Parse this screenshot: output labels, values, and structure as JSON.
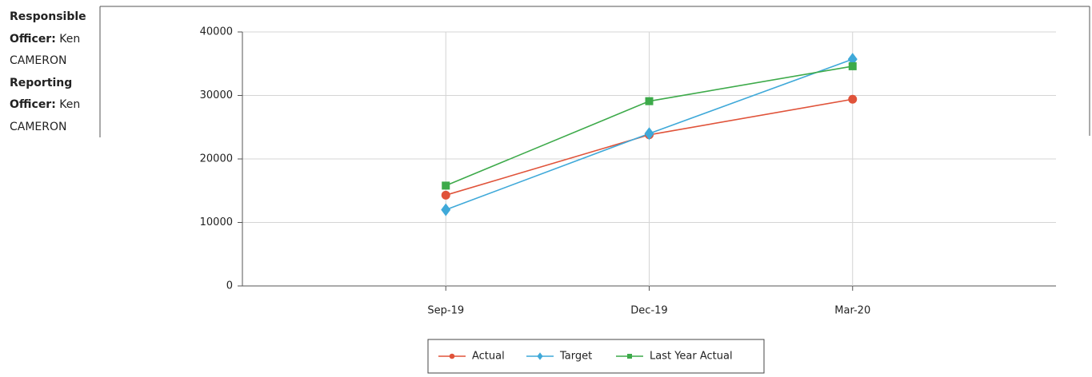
{
  "officers": [
    {
      "label": "Responsible Officer:",
      "name": "Ken CAMERON"
    },
    {
      "label": "Reporting Officer:",
      "name": "Ken CAMERON"
    }
  ],
  "chart_data": {
    "type": "line",
    "categories": [
      "Sep-19",
      "Dec-19",
      "Mar-20"
    ],
    "series": [
      {
        "name": "Actual",
        "color": "#e0533a",
        "marker": "circle",
        "values": [
          14300,
          23800,
          29400
        ]
      },
      {
        "name": "Target",
        "color": "#3fa9d9",
        "marker": "diamond",
        "values": [
          12000,
          24000,
          35700
        ]
      },
      {
        "name": "Last Year Actual",
        "color": "#3daa4a",
        "marker": "square",
        "values": [
          15800,
          29100,
          34600
        ]
      }
    ],
    "ylim": [
      0,
      40000
    ],
    "yticks": [
      0,
      10000,
      20000,
      30000,
      40000
    ],
    "grid": true,
    "legend": "bottom"
  }
}
